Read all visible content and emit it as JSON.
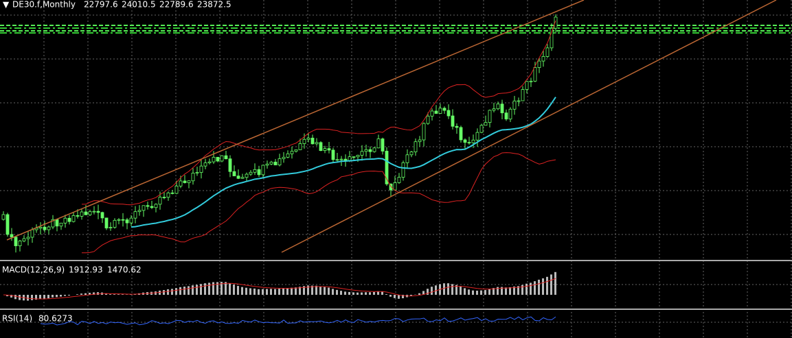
{
  "header": {
    "symbol": "DE30.f,Monthly",
    "ohlc": [
      22797.6,
      24010.5,
      22789.6,
      23872.5
    ]
  },
  "macd": {
    "label": "MACD(12,26,9)",
    "values": [
      1912.93,
      1470.62
    ]
  },
  "rsi": {
    "label": "RSI(14)",
    "value": 80.6273
  }
}
